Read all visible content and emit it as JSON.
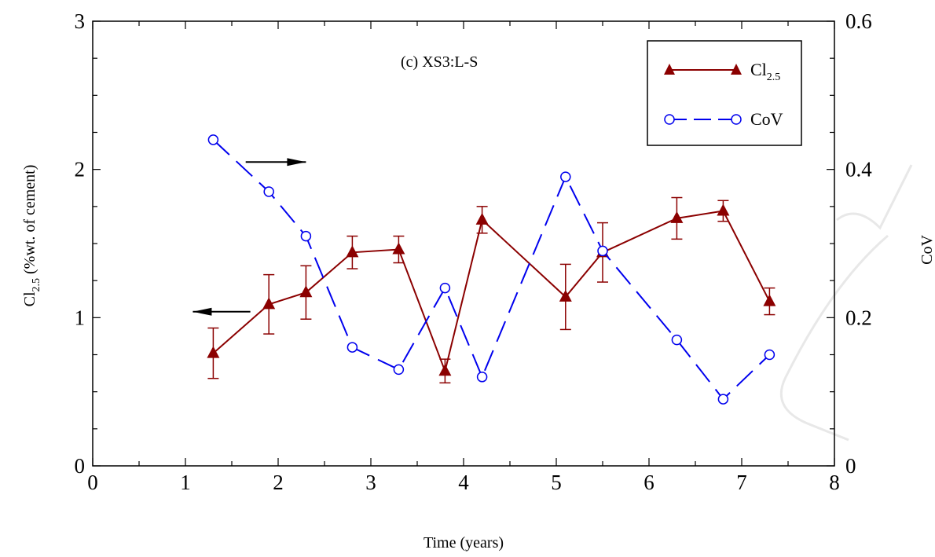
{
  "chart_data": {
    "type": "line",
    "title": "(c) XS3:L-S",
    "xlabel": "Time (years)",
    "ylabel_left": {
      "main": "Cl",
      "sub": "2.5",
      "tail": "(%wt. of cement)"
    },
    "ylabel_right": "CoV",
    "xlim": [
      0,
      8
    ],
    "ylim_left": [
      0,
      3
    ],
    "ylim_right": [
      0,
      0.6
    ],
    "x_ticks": [
      "0",
      "1",
      "2",
      "3",
      "4",
      "5",
      "6",
      "7",
      "8"
    ],
    "y_left_ticks": [
      "0",
      "1",
      "2",
      "3"
    ],
    "y_right_ticks": [
      "0",
      "0.2",
      "0.4",
      "0.6"
    ],
    "legend_position": "top-right",
    "series": [
      {
        "name": "Cl",
        "name_sub": "2.5",
        "axis": "left",
        "color": "#8b0000",
        "marker": "filled-triangle",
        "line_style": "solid",
        "x": [
          1.3,
          1.9,
          2.3,
          2.8,
          3.3,
          3.8,
          4.2,
          5.1,
          5.5,
          6.3,
          6.8,
          7.3
        ],
        "y": [
          0.76,
          1.09,
          1.17,
          1.44,
          1.46,
          0.64,
          1.66,
          1.14,
          1.44,
          1.67,
          1.72,
          1.11
        ],
        "y_err": [
          0.17,
          0.2,
          0.18,
          0.11,
          0.09,
          0.08,
          0.09,
          0.22,
          0.2,
          0.14,
          0.07,
          0.09
        ]
      },
      {
        "name": "CoV",
        "axis": "right",
        "color": "#0000ee",
        "marker": "open-circle",
        "line_style": "dashed",
        "x": [
          1.3,
          1.9,
          2.3,
          2.8,
          3.3,
          3.8,
          4.2,
          5.1,
          5.5,
          6.3,
          6.8,
          7.3
        ],
        "y": [
          0.44,
          0.37,
          0.31,
          0.16,
          0.13,
          0.24,
          0.12,
          0.39,
          0.29,
          0.17,
          0.09,
          0.15
        ]
      }
    ],
    "annotations": [
      {
        "type": "arrow",
        "direction": "right",
        "axis": "right",
        "from_x": 1.65,
        "to_x": 2.3,
        "y_right": 0.41
      },
      {
        "type": "arrow",
        "direction": "left",
        "axis": "left",
        "from_x": 1.7,
        "to_x": 1.08,
        "y_left": 1.04
      }
    ]
  }
}
